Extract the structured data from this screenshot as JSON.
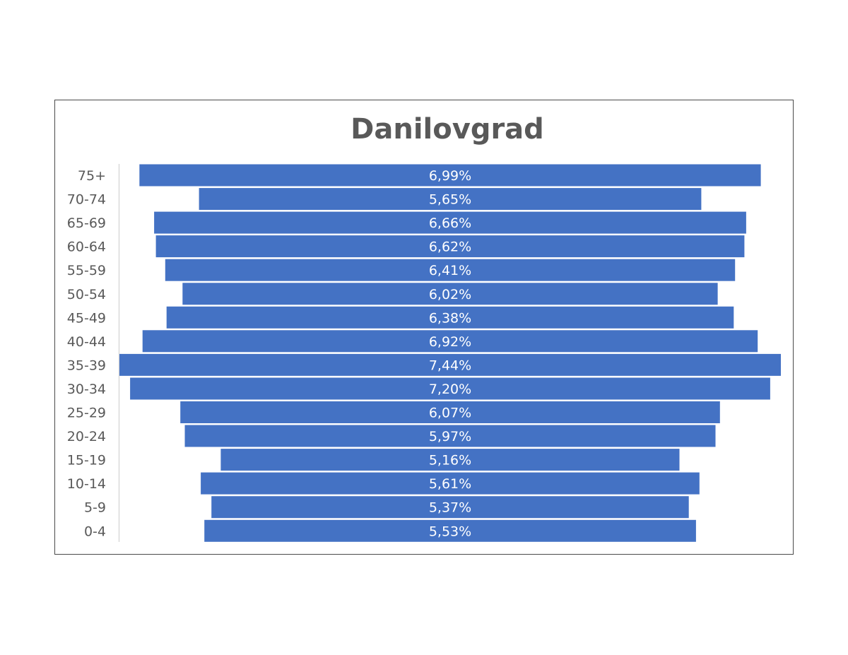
{
  "chart_data": {
    "type": "bar",
    "orientation": "horizontal-centered",
    "title": "Danilovgrad",
    "categories": [
      "75+",
      "70-74",
      "65-69",
      "60-64",
      "55-59",
      "50-54",
      "45-49",
      "40-44",
      "35-39",
      "30-34",
      "25-29",
      "20-24",
      "15-19",
      "10-14",
      "5-9",
      "0-4"
    ],
    "values": [
      6.99,
      5.65,
      6.66,
      6.62,
      6.41,
      6.02,
      6.38,
      6.92,
      7.44,
      7.2,
      6.07,
      5.97,
      5.16,
      5.61,
      5.37,
      5.53
    ],
    "labels": [
      "6,99%",
      "5,65%",
      "6,66%",
      "6,62%",
      "6,41%",
      "6,02%",
      "6,38%",
      "6,92%",
      "7,44%",
      "7,20%",
      "6,07%",
      "5,97%",
      "5,16%",
      "5,61%",
      "5,37%",
      "5,53%"
    ],
    "unit": "%",
    "bar_color": "#4472c4",
    "xlabel": "",
    "ylabel": "",
    "legend": "none",
    "grid": false
  }
}
